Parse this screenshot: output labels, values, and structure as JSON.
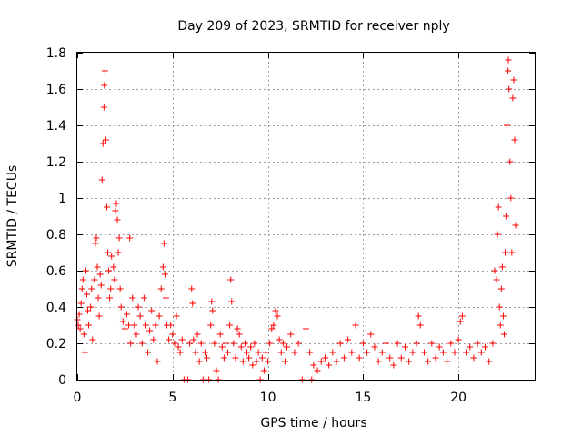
{
  "chart_data": {
    "type": "scatter",
    "title": "Day 209 of 2023, SRMTID for receiver nply",
    "xlabel": "GPS time / hours",
    "ylabel": "SRMTID / TECUs",
    "xlim": [
      0,
      24
    ],
    "ylim": [
      0,
      1.8
    ],
    "x_ticks": [
      0,
      5,
      10,
      15,
      20
    ],
    "x_tick_labels": [
      "0",
      "5",
      "10",
      "15",
      "20"
    ],
    "y_ticks": [
      0,
      0.2,
      0.4,
      0.6,
      0.8,
      1,
      1.2,
      1.4,
      1.6,
      1.8
    ],
    "y_tick_labels": [
      "0",
      "0.2",
      "0.4",
      "0.6",
      "0.8",
      "1",
      "1.2",
      "1.4",
      "1.6",
      "1.8"
    ],
    "grid": true,
    "marker": "+",
    "color": "#ff0000",
    "series": [
      {
        "name": "SRMTID",
        "points": [
          [
            0.0,
            0.33
          ],
          [
            0.05,
            0.3
          ],
          [
            0.1,
            0.36
          ],
          [
            0.15,
            0.28
          ],
          [
            0.2,
            0.42
          ],
          [
            0.25,
            0.5
          ],
          [
            0.3,
            0.55
          ],
          [
            0.35,
            0.25
          ],
          [
            0.4,
            0.15
          ],
          [
            0.45,
            0.6
          ],
          [
            0.5,
            0.47
          ],
          [
            0.55,
            0.38
          ],
          [
            0.6,
            0.3
          ],
          [
            0.7,
            0.4
          ],
          [
            0.75,
            0.5
          ],
          [
            0.8,
            0.22
          ],
          [
            0.9,
            0.55
          ],
          [
            0.95,
            0.75
          ],
          [
            1.0,
            0.78
          ],
          [
            1.05,
            0.62
          ],
          [
            1.1,
            0.45
          ],
          [
            1.15,
            0.35
          ],
          [
            1.2,
            0.58
          ],
          [
            1.25,
            0.52
          ],
          [
            1.3,
            1.1
          ],
          [
            1.35,
            1.3
          ],
          [
            1.4,
            1.5
          ],
          [
            1.42,
            1.62
          ],
          [
            1.45,
            1.7
          ],
          [
            1.5,
            1.32
          ],
          [
            1.55,
            0.95
          ],
          [
            1.6,
            0.7
          ],
          [
            1.65,
            0.6
          ],
          [
            1.7,
            0.45
          ],
          [
            1.75,
            0.5
          ],
          [
            1.8,
            0.68
          ],
          [
            1.9,
            0.62
          ],
          [
            1.95,
            0.55
          ],
          [
            2.0,
            0.93
          ],
          [
            2.05,
            0.97
          ],
          [
            2.1,
            0.88
          ],
          [
            2.15,
            0.7
          ],
          [
            2.2,
            0.78
          ],
          [
            2.25,
            0.5
          ],
          [
            2.3,
            0.4
          ],
          [
            2.4,
            0.32
          ],
          [
            2.5,
            0.28
          ],
          [
            2.6,
            0.36
          ],
          [
            2.7,
            0.3
          ],
          [
            2.75,
            0.78
          ],
          [
            2.8,
            0.2
          ],
          [
            2.9,
            0.45
          ],
          [
            3.0,
            0.3
          ],
          [
            3.1,
            0.25
          ],
          [
            3.2,
            0.4
          ],
          [
            3.3,
            0.35
          ],
          [
            3.4,
            0.2
          ],
          [
            3.5,
            0.45
          ],
          [
            3.6,
            0.3
          ],
          [
            3.7,
            0.15
          ],
          [
            3.8,
            0.27
          ],
          [
            3.9,
            0.38
          ],
          [
            4.0,
            0.22
          ],
          [
            4.1,
            0.3
          ],
          [
            4.2,
            0.1
          ],
          [
            4.3,
            0.35
          ],
          [
            4.4,
            0.5
          ],
          [
            4.5,
            0.62
          ],
          [
            4.55,
            0.75
          ],
          [
            4.6,
            0.58
          ],
          [
            4.65,
            0.45
          ],
          [
            4.7,
            0.3
          ],
          [
            4.8,
            0.22
          ],
          [
            4.9,
            0.3
          ],
          [
            5.0,
            0.25
          ],
          [
            5.1,
            0.2
          ],
          [
            5.2,
            0.35
          ],
          [
            5.3,
            0.18
          ],
          [
            5.4,
            0.15
          ],
          [
            5.5,
            0.22
          ],
          [
            5.6,
            0.0
          ],
          [
            5.7,
            0.0
          ],
          [
            5.8,
            0.0
          ],
          [
            5.9,
            0.2
          ],
          [
            6.0,
            0.5
          ],
          [
            6.05,
            0.42
          ],
          [
            6.1,
            0.22
          ],
          [
            6.2,
            0.15
          ],
          [
            6.3,
            0.25
          ],
          [
            6.4,
            0.1
          ],
          [
            6.5,
            0.2
          ],
          [
            6.6,
            0.0
          ],
          [
            6.7,
            0.15
          ],
          [
            6.8,
            0.12
          ],
          [
            6.9,
            0.0
          ],
          [
            7.0,
            0.3
          ],
          [
            7.05,
            0.43
          ],
          [
            7.1,
            0.38
          ],
          [
            7.2,
            0.2
          ],
          [
            7.3,
            0.05
          ],
          [
            7.4,
            0.0
          ],
          [
            7.5,
            0.25
          ],
          [
            7.6,
            0.18
          ],
          [
            7.7,
            0.12
          ],
          [
            7.8,
            0.2
          ],
          [
            7.9,
            0.15
          ],
          [
            8.0,
            0.3
          ],
          [
            8.05,
            0.55
          ],
          [
            8.1,
            0.43
          ],
          [
            8.2,
            0.2
          ],
          [
            8.3,
            0.12
          ],
          [
            8.4,
            0.28
          ],
          [
            8.5,
            0.25
          ],
          [
            8.6,
            0.18
          ],
          [
            8.7,
            0.1
          ],
          [
            8.8,
            0.2
          ],
          [
            8.9,
            0.15
          ],
          [
            9.0,
            0.12
          ],
          [
            9.1,
            0.18
          ],
          [
            9.2,
            0.08
          ],
          [
            9.3,
            0.2
          ],
          [
            9.4,
            0.1
          ],
          [
            9.5,
            0.15
          ],
          [
            9.6,
            0.0
          ],
          [
            9.7,
            0.12
          ],
          [
            9.8,
            0.05
          ],
          [
            9.9,
            0.15
          ],
          [
            10.0,
            0.1
          ],
          [
            10.1,
            0.2
          ],
          [
            10.2,
            0.28
          ],
          [
            10.3,
            0.3
          ],
          [
            10.4,
            0.38
          ],
          [
            10.5,
            0.35
          ],
          [
            10.6,
            0.22
          ],
          [
            10.7,
            0.15
          ],
          [
            10.8,
            0.2
          ],
          [
            10.9,
            0.1
          ],
          [
            11.0,
            0.18
          ],
          [
            11.2,
            0.25
          ],
          [
            11.4,
            0.15
          ],
          [
            11.6,
            0.2
          ],
          [
            11.8,
            0.0
          ],
          [
            12.0,
            0.28
          ],
          [
            12.2,
            0.15
          ],
          [
            12.3,
            0.0
          ],
          [
            12.4,
            0.08
          ],
          [
            12.6,
            0.05
          ],
          [
            12.8,
            0.1
          ],
          [
            13.0,
            0.12
          ],
          [
            13.2,
            0.08
          ],
          [
            13.4,
            0.15
          ],
          [
            13.6,
            0.1
          ],
          [
            13.8,
            0.2
          ],
          [
            14.0,
            0.12
          ],
          [
            14.2,
            0.22
          ],
          [
            14.4,
            0.15
          ],
          [
            14.6,
            0.3
          ],
          [
            14.8,
            0.12
          ],
          [
            15.0,
            0.2
          ],
          [
            15.2,
            0.15
          ],
          [
            15.4,
            0.25
          ],
          [
            15.6,
            0.18
          ],
          [
            15.8,
            0.1
          ],
          [
            16.0,
            0.15
          ],
          [
            16.2,
            0.2
          ],
          [
            16.4,
            0.12
          ],
          [
            16.6,
            0.08
          ],
          [
            16.8,
            0.2
          ],
          [
            17.0,
            0.12
          ],
          [
            17.2,
            0.18
          ],
          [
            17.4,
            0.1
          ],
          [
            17.6,
            0.15
          ],
          [
            17.8,
            0.2
          ],
          [
            17.9,
            0.35
          ],
          [
            18.0,
            0.3
          ],
          [
            18.2,
            0.15
          ],
          [
            18.4,
            0.1
          ],
          [
            18.6,
            0.2
          ],
          [
            18.8,
            0.12
          ],
          [
            19.0,
            0.18
          ],
          [
            19.2,
            0.15
          ],
          [
            19.4,
            0.1
          ],
          [
            19.6,
            0.2
          ],
          [
            19.8,
            0.15
          ],
          [
            20.0,
            0.22
          ],
          [
            20.1,
            0.32
          ],
          [
            20.2,
            0.35
          ],
          [
            20.4,
            0.15
          ],
          [
            20.6,
            0.18
          ],
          [
            20.8,
            0.12
          ],
          [
            21.0,
            0.2
          ],
          [
            21.2,
            0.15
          ],
          [
            21.4,
            0.18
          ],
          [
            21.6,
            0.1
          ],
          [
            21.8,
            0.2
          ],
          [
            21.9,
            0.6
          ],
          [
            22.0,
            0.55
          ],
          [
            22.05,
            0.8
          ],
          [
            22.1,
            0.95
          ],
          [
            22.15,
            0.4
          ],
          [
            22.2,
            0.3
          ],
          [
            22.25,
            0.5
          ],
          [
            22.3,
            0.62
          ],
          [
            22.35,
            0.35
          ],
          [
            22.4,
            0.25
          ],
          [
            22.45,
            0.7
          ],
          [
            22.5,
            0.9
          ],
          [
            22.55,
            1.4
          ],
          [
            22.6,
            1.7
          ],
          [
            22.62,
            1.76
          ],
          [
            22.65,
            1.6
          ],
          [
            22.7,
            1.2
          ],
          [
            22.75,
            1.0
          ],
          [
            22.8,
            0.7
          ],
          [
            22.85,
            1.55
          ],
          [
            22.9,
            1.65
          ],
          [
            22.95,
            1.32
          ],
          [
            23.0,
            0.85
          ]
        ]
      }
    ]
  }
}
